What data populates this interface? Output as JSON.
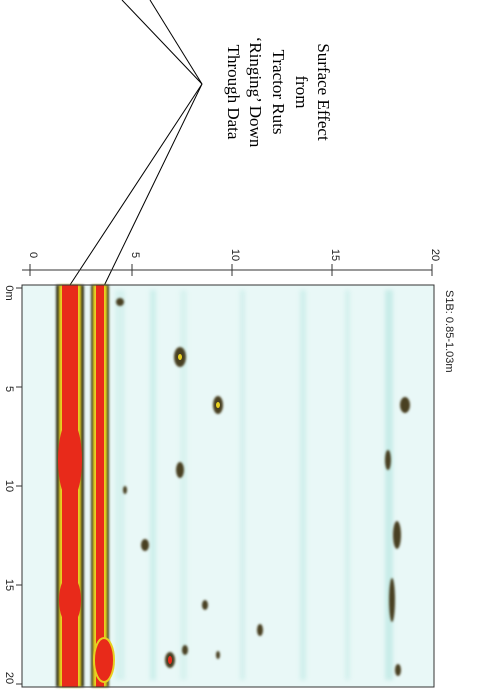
{
  "annotation": {
    "lines": [
      "Surface Effect",
      "from",
      "Tractor Ruts",
      "‘Ringing’ Down",
      "Through Data"
    ]
  },
  "plot": {
    "title": "S1B: 0.85-1.03m",
    "distance_ticks": [
      "0m",
      "5",
      "10",
      "15",
      "20"
    ],
    "offset_ticks": [
      "0",
      "5",
      "10",
      "15",
      "20"
    ]
  }
}
